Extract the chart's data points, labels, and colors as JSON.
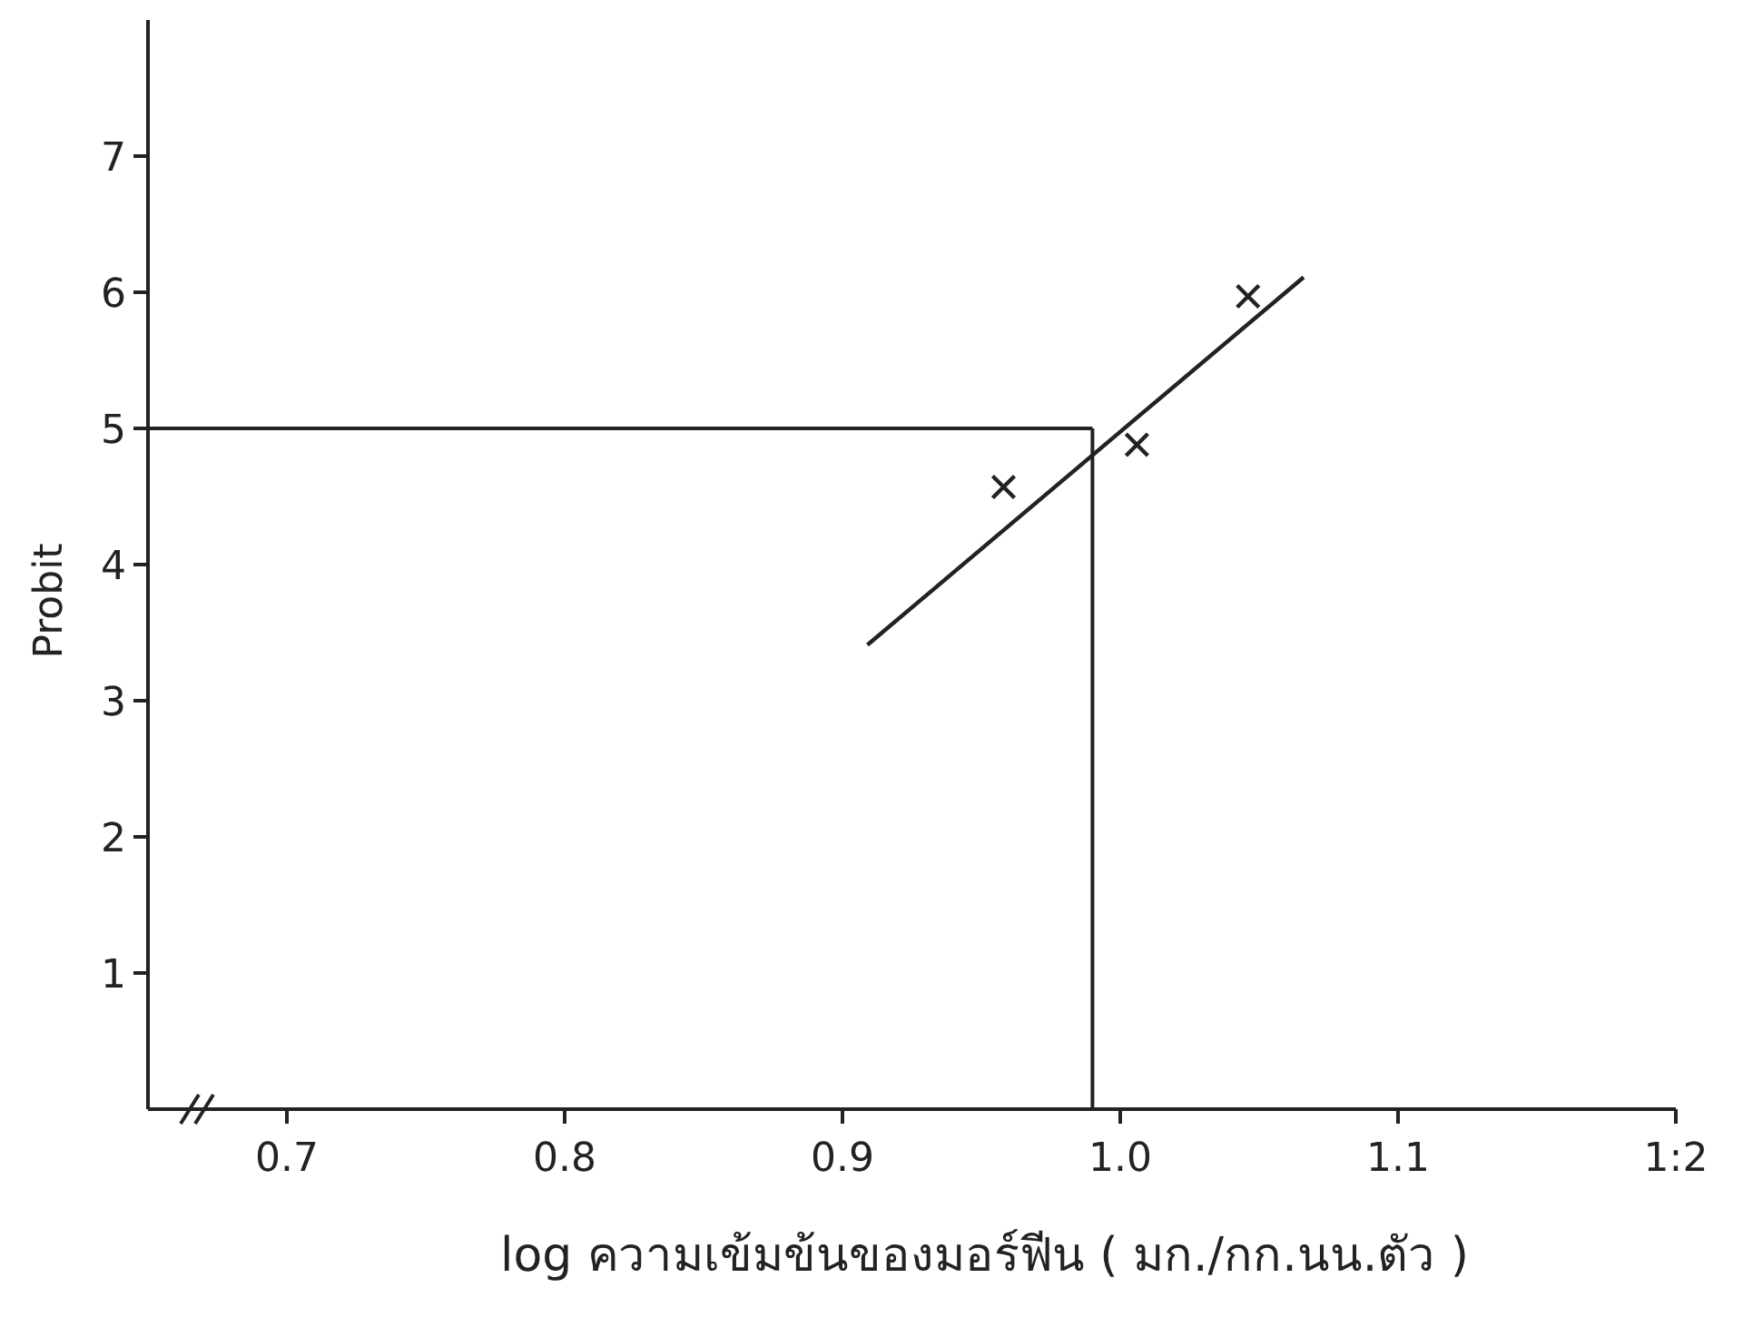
{
  "chart_data": {
    "type": "scatter",
    "xlabel": "log ความเข้มข้นของมอร์ฟีน ( มก./กก.นน.ตัว )",
    "ylabel": "Probit",
    "xlim": [
      0.65,
      1.2
    ],
    "ylim": [
      0,
      8
    ],
    "xticks": [
      0.7,
      0.8,
      0.9,
      {
        "value": 1.0,
        "label": "1.0"
      },
      1.1,
      {
        "value": 1.2,
        "label": "1:2"
      }
    ],
    "yticks": [
      1,
      2,
      3,
      4,
      5,
      6,
      7
    ],
    "series": [
      {
        "marker": "cross",
        "color": "#222222",
        "x": [
          0.958,
          1.006,
          1.046
        ],
        "values": [
          4.57,
          4.88,
          5.97
        ]
      },
      {
        "type": "line",
        "color": "#222222",
        "x": [
          0.909,
          1.066
        ],
        "values": [
          3.41,
          6.11
        ]
      }
    ],
    "ref_lines": [
      {
        "axis": "y",
        "value": 5,
        "color": "#222222"
      },
      {
        "axis": "x",
        "value": 0.99,
        "color": "#222222"
      }
    ]
  }
}
